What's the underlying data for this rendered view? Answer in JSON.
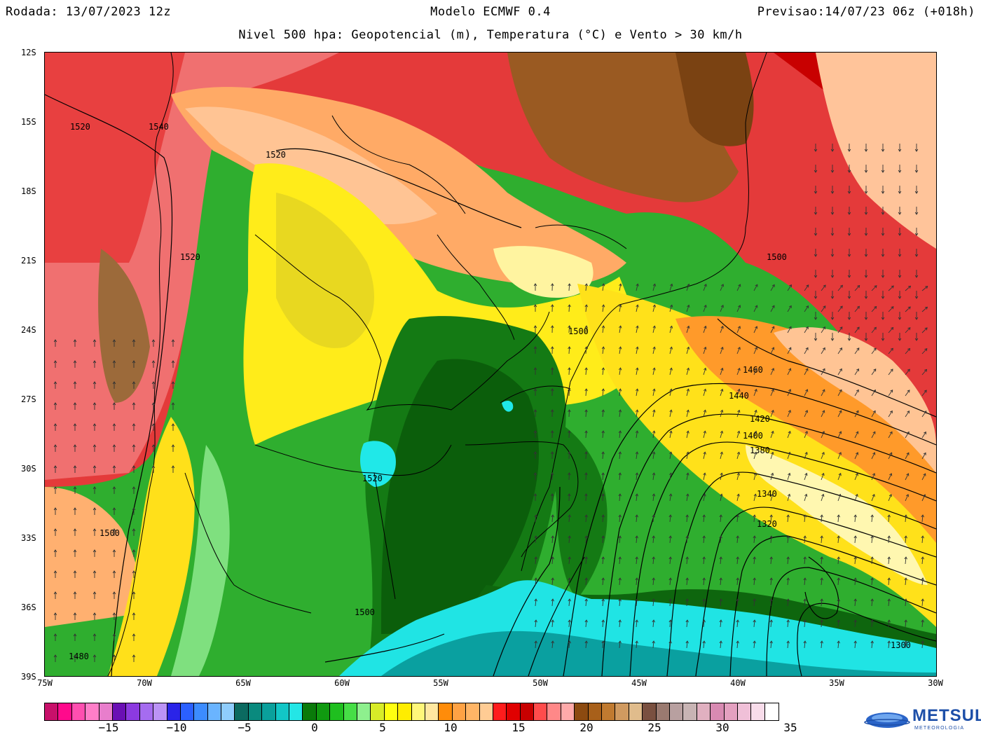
{
  "header": {
    "run": "Rodada: 13/07/2023 12z",
    "model": "Modelo ECMWF 0.4",
    "forecast": "Previsao:14/07/23 06z (+018h)",
    "subtitle": "Nivel 500 hpa: Geopotencial (m), Temperatura (°C) e Vento > 30 km/h"
  },
  "axes": {
    "lat_labels": [
      "12S",
      "15S",
      "18S",
      "21S",
      "24S",
      "27S",
      "30S",
      "33S",
      "36S",
      "39S"
    ],
    "lon_labels": [
      "75W",
      "70W",
      "65W",
      "60W",
      "55W",
      "50W",
      "45W",
      "40W",
      "35W",
      "30W"
    ]
  },
  "contour_labels": [
    "1520",
    "1540",
    "1520",
    "1520",
    "1500",
    "1500",
    "1460",
    "1440",
    "1420",
    "1400",
    "1380",
    "1340",
    "1320",
    "1520",
    "1500",
    "1500",
    "1480",
    "1300"
  ],
  "colorbar": {
    "colors": [
      "#c8106a",
      "#ff0a8c",
      "#ff4fb0",
      "#ff7ec8",
      "#e87ecc",
      "#6a0fb4",
      "#8c3ae0",
      "#a56cf0",
      "#bb93f6",
      "#2a24e8",
      "#2b60ff",
      "#3c8cff",
      "#6ab4ff",
      "#8fcdfd",
      "#0b6a60",
      "#0a8a7e",
      "#0aa09c",
      "#12c6c6",
      "#24e6e6",
      "#0a7a0a",
      "#109a10",
      "#1fbf1f",
      "#46de46",
      "#8ef08e",
      "#d8ec28",
      "#ffff10",
      "#ffed00",
      "#fff77a",
      "#ffe8a0",
      "#ff8c0a",
      "#ffa244",
      "#ffb566",
      "#ffcc94",
      "#ff1c1c",
      "#e00000",
      "#c80000",
      "#ff4c4c",
      "#ff8888",
      "#ffaaaa",
      "#8c4a10",
      "#a8601a",
      "#c07a30",
      "#d09a60",
      "#e0bc8c",
      "#7a5040",
      "#9a7a70",
      "#b8a0a0",
      "#c8b4b4",
      "#e0b0c0",
      "#d88ab2",
      "#e4a0c0",
      "#f0c0d8",
      "#f8dcea",
      "#ffffff"
    ],
    "ticks": [
      "−15",
      "−10",
      "−5",
      "0",
      "5",
      "10",
      "15",
      "20",
      "25",
      "30",
      "35"
    ]
  },
  "logo": {
    "name": "METSUL",
    "tagline": "METEOROLOGIA"
  }
}
